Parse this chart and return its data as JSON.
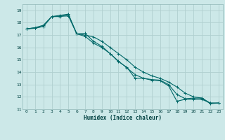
{
  "title": "",
  "xlabel": "Humidex (Indice chaleur)",
  "bg_color": "#cce8e8",
  "grid_color": "#b0d0d0",
  "line_color": "#006868",
  "xlim": [
    -0.5,
    23.5
  ],
  "ylim": [
    11,
    19.5
  ],
  "xticks": [
    0,
    1,
    2,
    3,
    4,
    5,
    6,
    7,
    8,
    9,
    10,
    11,
    12,
    13,
    14,
    15,
    16,
    17,
    18,
    19,
    20,
    21,
    22,
    23
  ],
  "yticks": [
    11,
    12,
    13,
    14,
    15,
    16,
    17,
    18,
    19
  ],
  "series1_x": [
    0,
    1,
    2,
    3,
    4,
    5,
    6,
    7,
    8,
    9,
    10,
    11,
    12,
    13,
    14,
    15,
    16,
    17,
    18,
    19,
    20,
    21,
    22,
    23
  ],
  "series1_y": [
    17.5,
    17.6,
    17.8,
    18.5,
    18.5,
    18.65,
    17.1,
    17.15,
    16.5,
    16.1,
    15.5,
    14.85,
    14.4,
    13.5,
    13.5,
    13.4,
    13.35,
    13.0,
    12.2,
    11.85,
    11.9,
    11.9,
    11.45,
    11.5
  ],
  "series2_x": [
    0,
    1,
    2,
    3,
    4,
    5,
    6,
    7,
    8,
    9,
    10,
    11,
    12,
    13,
    14,
    15,
    16,
    17,
    18,
    19,
    20,
    21,
    22,
    23
  ],
  "series2_y": [
    17.5,
    17.6,
    17.7,
    18.5,
    18.6,
    18.7,
    17.1,
    17.0,
    16.85,
    16.5,
    16.0,
    15.5,
    15.0,
    14.4,
    14.0,
    13.7,
    13.5,
    13.2,
    12.8,
    12.3,
    12.0,
    11.9,
    11.5,
    11.5
  ],
  "series3_x": [
    0,
    1,
    2,
    3,
    4,
    5,
    6,
    7,
    8,
    9,
    10,
    11,
    12,
    13,
    14,
    15,
    16,
    17,
    18,
    19,
    20,
    21,
    22,
    23
  ],
  "series3_y": [
    17.5,
    17.55,
    17.7,
    18.5,
    18.52,
    18.55,
    17.1,
    16.9,
    16.35,
    16.0,
    15.5,
    14.9,
    14.35,
    13.8,
    13.5,
    13.35,
    13.3,
    12.9,
    11.65,
    11.8,
    11.8,
    11.8,
    11.5,
    11.5
  ]
}
